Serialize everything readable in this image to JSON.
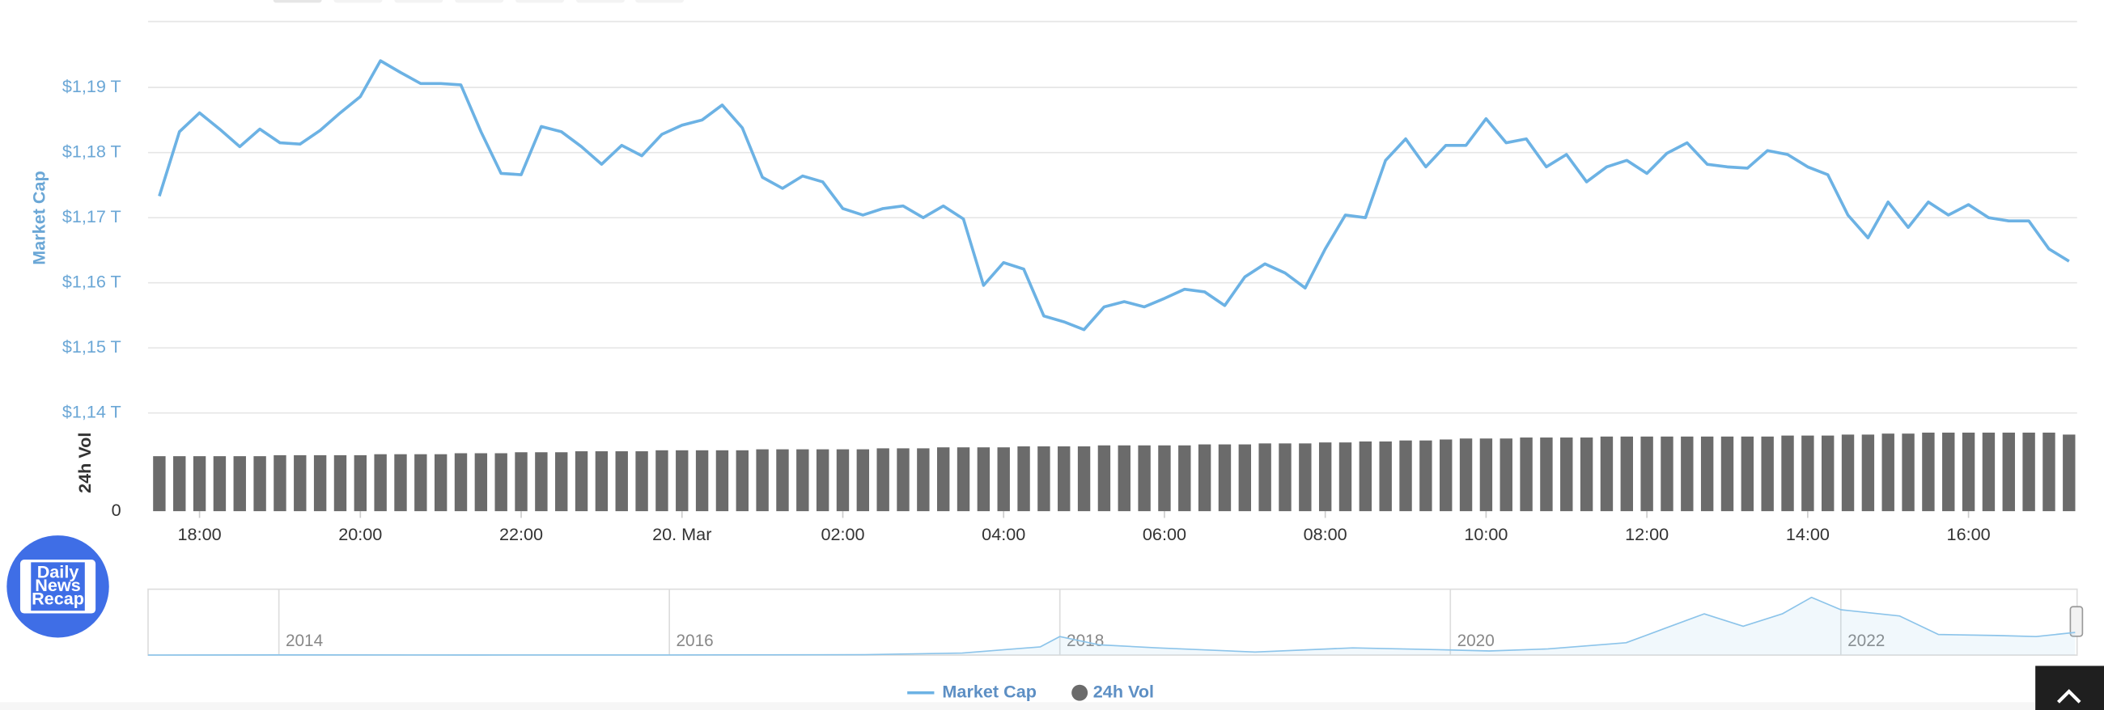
{
  "chart_data": [
    {
      "type": "line",
      "ylabel": "Market Cap",
      "x": [
        17.5,
        17.75,
        18,
        18.25,
        18.5,
        18.75,
        19,
        19.25,
        19.5,
        19.75,
        20,
        20.25,
        20.5,
        20.75,
        21,
        21.25,
        21.5,
        21.75,
        22,
        22.25,
        22.5,
        22.75,
        23,
        23.25,
        23.5,
        23.75,
        24,
        24.25,
        24.5,
        24.75,
        25,
        25.25,
        25.5,
        25.75,
        26,
        26.25,
        26.5,
        26.75,
        27,
        27.25,
        27.5,
        27.75,
        28,
        28.25,
        28.5,
        28.75,
        29,
        29.25,
        29.5,
        29.75,
        30,
        30.25,
        30.5,
        30.75,
        31,
        31.25,
        31.5,
        31.75,
        32,
        32.25,
        32.5,
        32.75,
        33,
        33.25,
        33.5,
        33.75,
        34,
        34.25,
        34.5,
        34.75,
        35,
        35.25,
        35.5,
        35.75,
        36,
        36.25,
        36.5,
        36.75,
        37,
        37.25,
        37.5,
        37.75,
        38,
        38.25,
        38.5,
        38.75,
        39,
        39.25,
        39.5,
        39.75,
        40,
        40.25,
        40.5,
        40.75,
        41,
        41.25
      ],
      "series": [
        {
          "name": "Market Cap",
          "color": "#6cb2e4",
          "values": [
            1.1733,
            1.1832,
            1.1861,
            1.1836,
            1.1809,
            1.1836,
            1.1815,
            1.1813,
            1.1834,
            1.1861,
            1.1886,
            1.1941,
            1.1923,
            1.1906,
            1.1906,
            1.1904,
            1.1832,
            1.1768,
            1.1766,
            1.184,
            1.1832,
            1.1809,
            1.1782,
            1.1811,
            1.1795,
            1.1828,
            1.1842,
            1.185,
            1.1873,
            1.1838,
            1.1762,
            1.1745,
            1.1764,
            1.1755,
            1.1714,
            1.1704,
            1.1714,
            1.1718,
            1.17,
            1.1718,
            1.1698,
            1.1596,
            1.1631,
            1.1621,
            1.1549,
            1.154,
            1.1528,
            1.1563,
            1.1571,
            1.1563,
            1.1576,
            1.159,
            1.1586,
            1.1565,
            1.1609,
            1.1629,
            1.1615,
            1.1592,
            1.1652,
            1.1704,
            1.17,
            1.1788,
            1.1821,
            1.1778,
            1.1811,
            1.1811,
            1.1852,
            1.1815,
            1.1821,
            1.1778,
            1.1797,
            1.1755,
            1.1778,
            1.1788,
            1.1768,
            1.1799,
            1.1815,
            1.1782,
            1.1778,
            1.1776,
            1.1803,
            1.1797,
            1.1778,
            1.1766,
            1.1704,
            1.1669,
            1.1724,
            1.1685,
            1.1724,
            1.1704,
            1.172,
            1.17,
            1.1695,
            1.1695,
            1.1652,
            1.1633
          ]
        }
      ],
      "xlim": [
        17.36,
        41.35
      ],
      "ylim": [
        1.14,
        1.2
      ],
      "yticks": [
        {
          "value": 1.14,
          "label": "$1,14 T"
        },
        {
          "value": 1.15,
          "label": "$1,15 T"
        },
        {
          "value": 1.16,
          "label": "$1,16 T"
        },
        {
          "value": 1.17,
          "label": "$1,17 T"
        },
        {
          "value": 1.18,
          "label": "$1,18 T"
        },
        {
          "value": 1.19,
          "label": "$1,19 T"
        }
      ],
      "grid": true
    },
    {
      "type": "bar",
      "ylabel": "24h Vol",
      "x": [
        17.5,
        17.75,
        18,
        18.25,
        18.5,
        18.75,
        19,
        19.25,
        19.5,
        19.75,
        20,
        20.25,
        20.5,
        20.75,
        21,
        21.25,
        21.5,
        21.75,
        22,
        22.25,
        22.5,
        22.75,
        23,
        23.25,
        23.5,
        23.75,
        24,
        24.25,
        24.5,
        24.75,
        25,
        25.25,
        25.5,
        25.75,
        26,
        26.25,
        26.5,
        26.75,
        27,
        27.25,
        27.5,
        27.75,
        28,
        28.25,
        28.5,
        28.75,
        29,
        29.25,
        29.5,
        29.75,
        30,
        30.25,
        30.5,
        30.75,
        31,
        31.25,
        31.5,
        31.75,
        32,
        32.25,
        32.5,
        32.75,
        33,
        33.25,
        33.5,
        33.75,
        34,
        34.25,
        34.5,
        34.75,
        35,
        35.25,
        35.5,
        35.75,
        36,
        36.25,
        36.5,
        36.75,
        37,
        37.25,
        37.5,
        37.75,
        38,
        38.25,
        38.5,
        38.75,
        39,
        39.25,
        39.5,
        39.75,
        40,
        40.25,
        40.5,
        40.75,
        41,
        41.25
      ],
      "series": [
        {
          "name": "24h Vol",
          "color": "#6b6b6b",
          "values": [
            56,
            56,
            56,
            56,
            56,
            56,
            57,
            57,
            57,
            57,
            57,
            58,
            58,
            58,
            58,
            59,
            59,
            59,
            60,
            60,
            60,
            61,
            61,
            61,
            61,
            62,
            62,
            62,
            62,
            62,
            63,
            63,
            63,
            63,
            63,
            63,
            64,
            64,
            64,
            65,
            65,
            65,
            65,
            66,
            66,
            66,
            66,
            67,
            67,
            67,
            67,
            67,
            68,
            68,
            68,
            69,
            69,
            69,
            70,
            70,
            71,
            71,
            72,
            72,
            73,
            74,
            74,
            74,
            75,
            75,
            75,
            75,
            76,
            76,
            76,
            76,
            76,
            76,
            76,
            76,
            76,
            77,
            77,
            77,
            78,
            78,
            79,
            79,
            80,
            80,
            80,
            80,
            80,
            80,
            80,
            78
          ]
        }
      ],
      "xlim": [
        17.36,
        41.35
      ],
      "ylim": [
        0,
        100
      ],
      "yticks": [
        0
      ],
      "xticks": [
        {
          "value": 18,
          "label": "18:00"
        },
        {
          "value": 20,
          "label": "20:00"
        },
        {
          "value": 22,
          "label": "22:00"
        },
        {
          "value": 24,
          "label": "20. Mar"
        },
        {
          "value": 26,
          "label": "02:00"
        },
        {
          "value": 28,
          "label": "04:00"
        },
        {
          "value": 30,
          "label": "06:00"
        },
        {
          "value": 32,
          "label": "08:00"
        },
        {
          "value": 34,
          "label": "10:00"
        },
        {
          "value": 36,
          "label": "12:00"
        },
        {
          "value": 38,
          "label": "14:00"
        },
        {
          "value": 40,
          "label": "16:00"
        }
      ],
      "grid": false
    },
    {
      "type": "line",
      "x": [
        2013.33,
        2014,
        2015,
        2016,
        2017,
        2017.5,
        2017.9,
        2018,
        2018.2,
        2018.5,
        2019,
        2019.5,
        2020,
        2020.2,
        2020.5,
        2020.9,
        2021.1,
        2021.3,
        2021.5,
        2021.7,
        2021.85,
        2022,
        2022.3,
        2022.5,
        2022.8,
        2023,
        2023.2
      ],
      "series": [
        {
          "color": "#8cc4ea",
          "values": [
            0.002,
            0.01,
            0.005,
            0.007,
            0.02,
            0.1,
            0.4,
            0.9,
            0.5,
            0.35,
            0.15,
            0.35,
            0.25,
            0.2,
            0.3,
            0.6,
            1.3,
            2.0,
            1.4,
            2.0,
            2.8,
            2.2,
            1.9,
            1.0,
            0.95,
            0.9,
            1.1
          ]
        }
      ],
      "xlim": [
        2013.33,
        2023.21
      ],
      "ylim": [
        0,
        3
      ],
      "xticks": [
        2014,
        2016,
        2018,
        2020,
        2022
      ],
      "grid": true
    }
  ],
  "logo": {
    "lines": [
      "Daily",
      "News",
      "Recap"
    ]
  }
}
